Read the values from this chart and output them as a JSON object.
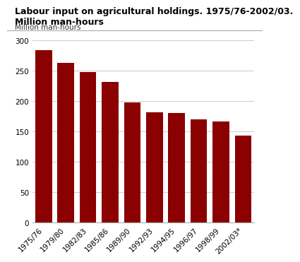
{
  "title_line1": "Labour input on agricultural holdings. 1975/76-2002/03.",
  "title_line2": "Million man-hours",
  "ylabel": "Million man-hours",
  "categories": [
    "1975/76",
    "1979/80",
    "1982/83",
    "1985/86",
    "1989/90",
    "1992/93",
    "1994/95",
    "1996/97",
    "1998/99",
    "2002/03*"
  ],
  "values": [
    284,
    263,
    247,
    231,
    197,
    181,
    180,
    170,
    166,
    143
  ],
  "bar_color": "#8B0000",
  "ylim": [
    0,
    300
  ],
  "yticks": [
    0,
    50,
    100,
    150,
    200,
    250,
    300
  ],
  "background_color": "#ffffff",
  "plot_bg_color": "#ffffff",
  "grid_color": "#cccccc",
  "title_fontsize": 9.0,
  "ylabel_fontsize": 7.5,
  "tick_fontsize": 7.5
}
